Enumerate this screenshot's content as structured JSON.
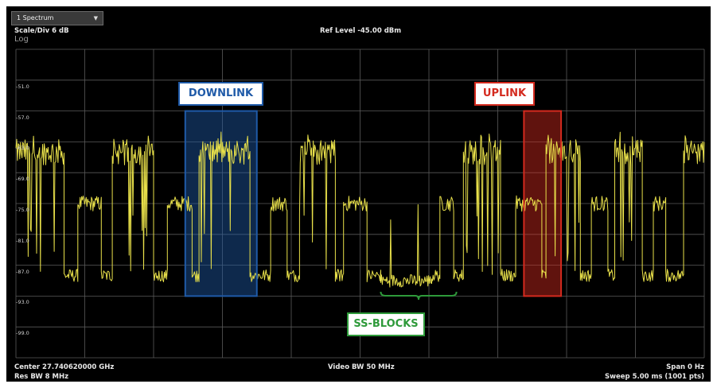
{
  "window": {
    "tab_label": "1 Spectrum"
  },
  "header": {
    "scale": "Scale/Div 6 dB",
    "mode": "Log",
    "ref_level": "Ref Level -45.00 dBm"
  },
  "footer": {
    "center": "Center 27.740620000 GHz",
    "res_bw": "Res BW 8 MHz",
    "video_bw": "Video BW 50 MHz",
    "span": "Span 0 Hz",
    "sweep": "Sweep 5.00 ms (1001 pts)"
  },
  "annotations": {
    "downlink": "DOWNLINK",
    "uplink": "UPLINK",
    "ss_blocks": "SS-BLOCKS"
  },
  "colors": {
    "background": "#000000",
    "trace": "#e8e04a",
    "grid": "#5a5a5a",
    "downlink": "#1f5aa8",
    "uplink": "#d42a1e",
    "ss_blocks": "#2e9a3a"
  },
  "chart_data": {
    "type": "line",
    "y_ticks": [
      "-51.0",
      "-57.0",
      "-63.0",
      "-69.0",
      "-75.0",
      "-81.0",
      "-87.0",
      "-93.0",
      "-99.0"
    ],
    "ylim": [
      -105,
      -45
    ],
    "xlim": [
      0,
      5
    ],
    "x_unit": "ms",
    "grid": true,
    "segments": [
      {
        "x0": 0.0,
        "x1": 0.35,
        "level": -65
      },
      {
        "x0": 0.35,
        "x1": 0.45,
        "level": -89
      },
      {
        "x0": 0.45,
        "x1": 0.62,
        "level": -75
      },
      {
        "x0": 0.62,
        "x1": 0.7,
        "level": -89
      },
      {
        "x0": 0.7,
        "x1": 1.0,
        "level": -65
      },
      {
        "x0": 1.0,
        "x1": 1.1,
        "level": -89
      },
      {
        "x0": 1.1,
        "x1": 1.28,
        "level": -75
      },
      {
        "x0": 1.28,
        "x1": 1.33,
        "level": -89
      },
      {
        "x0": 1.33,
        "x1": 1.7,
        "level": -65
      },
      {
        "x0": 1.7,
        "x1": 1.85,
        "level": -89
      },
      {
        "x0": 1.85,
        "x1": 1.97,
        "level": -75
      },
      {
        "x0": 1.97,
        "x1": 2.06,
        "level": -89
      },
      {
        "x0": 2.06,
        "x1": 2.32,
        "level": -65
      },
      {
        "x0": 2.32,
        "x1": 2.38,
        "level": -89
      },
      {
        "x0": 2.38,
        "x1": 2.55,
        "level": -75
      },
      {
        "x0": 2.55,
        "x1": 2.65,
        "level": -89
      },
      {
        "x0": 2.65,
        "x1": 3.02,
        "level": -90
      },
      {
        "x0": 3.02,
        "x1": 3.08,
        "level": -89
      },
      {
        "x0": 3.08,
        "x1": 3.18,
        "level": -75
      },
      {
        "x0": 3.18,
        "x1": 3.25,
        "level": -89
      },
      {
        "x0": 3.25,
        "x1": 3.52,
        "level": -65
      },
      {
        "x0": 3.52,
        "x1": 3.63,
        "level": -89
      },
      {
        "x0": 3.63,
        "x1": 3.82,
        "level": -75
      },
      {
        "x0": 3.82,
        "x1": 3.85,
        "level": -89
      },
      {
        "x0": 3.85,
        "x1": 4.1,
        "level": -65
      },
      {
        "x0": 4.1,
        "x1": 4.18,
        "level": -89
      },
      {
        "x0": 4.18,
        "x1": 4.3,
        "level": -75
      },
      {
        "x0": 4.3,
        "x1": 4.35,
        "level": -89
      },
      {
        "x0": 4.35,
        "x1": 4.55,
        "level": -65
      },
      {
        "x0": 4.55,
        "x1": 4.63,
        "level": -89
      },
      {
        "x0": 4.63,
        "x1": 4.72,
        "level": -75
      },
      {
        "x0": 4.72,
        "x1": 4.85,
        "level": -89
      },
      {
        "x0": 4.85,
        "x1": 5.0,
        "level": -65
      }
    ],
    "highlight_regions": [
      {
        "label": "DOWNLINK",
        "x0": 1.23,
        "x1": 1.75,
        "y_top": -57,
        "y_bottom": -93
      },
      {
        "label": "UPLINK",
        "x0": 3.69,
        "x1": 3.96,
        "y_top": -57,
        "y_bottom": -93
      }
    ],
    "bracket": {
      "label": "SS-BLOCKS",
      "x0": 2.65,
      "x1": 3.2
    }
  }
}
